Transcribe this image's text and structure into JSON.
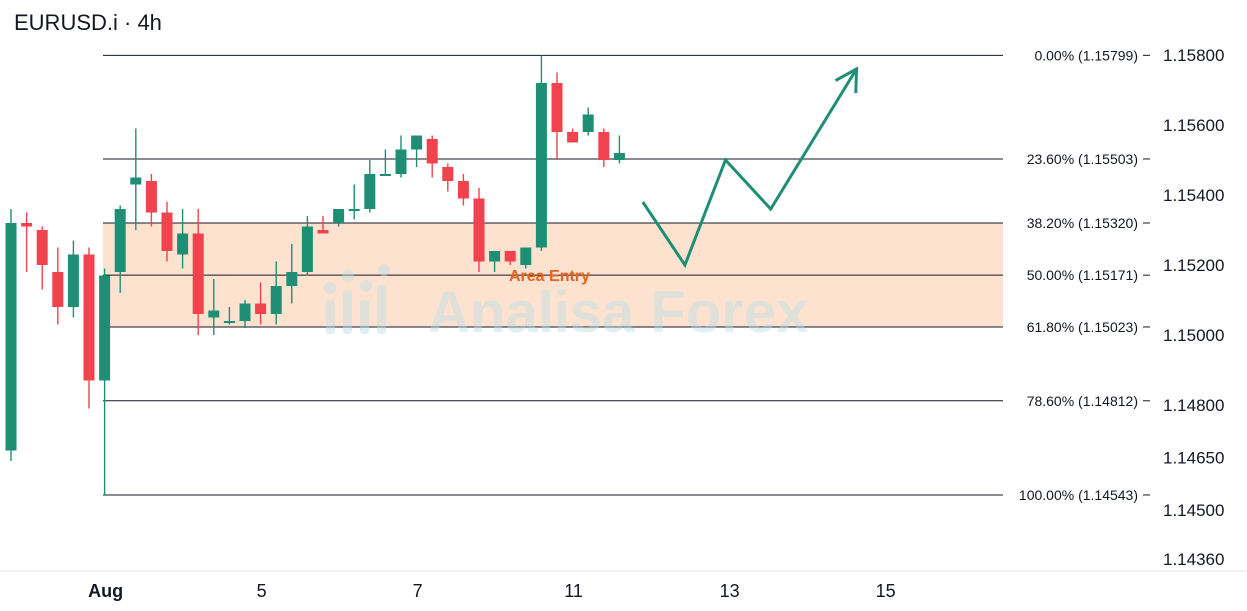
{
  "header": {
    "title": "EURUSD.i · 4h"
  },
  "watermark": {
    "text": "Analisa Forex",
    "icon": "bar-chart-logo-icon"
  },
  "colors": {
    "bull": "#1e8f74",
    "bear": "#f0434d",
    "zone": "#fde3cf",
    "projection": "#1e8f74"
  },
  "chart_data": {
    "type": "candlestick",
    "symbol": "EURUSD.i",
    "timeframe": "4h",
    "ylim": [
      1.1436,
      1.1589
    ],
    "y_ticks": [
      1.158,
      1.156,
      1.154,
      1.152,
      1.15,
      1.148,
      1.1465,
      1.145,
      1.1436
    ],
    "y_tick_labels": [
      "1.15800",
      "1.15600",
      "1.15400",
      "1.15200",
      "1.15000",
      "1.14800",
      "1.14650",
      "1.14500",
      "1.14360"
    ],
    "x_tick_labels": [
      {
        "label": "Aug",
        "index": 6
      },
      {
        "label": "5",
        "index": 16
      },
      {
        "label": "7",
        "index": 26
      },
      {
        "label": "11",
        "index": 36
      },
      {
        "label": "13",
        "index": 46
      },
      {
        "label": "15",
        "index": 56
      }
    ],
    "candles": [
      {
        "o": 1.1467,
        "h": 1.1536,
        "l": 1.1464,
        "c": 1.1532
      },
      {
        "o": 1.1532,
        "h": 1.1535,
        "l": 1.1518,
        "c": 1.1531
      },
      {
        "o": 1.153,
        "h": 1.1531,
        "l": 1.1513,
        "c": 1.152
      },
      {
        "o": 1.1518,
        "h": 1.1525,
        "l": 1.1503,
        "c": 1.1508
      },
      {
        "o": 1.1508,
        "h": 1.1527,
        "l": 1.1505,
        "c": 1.1523
      },
      {
        "o": 1.1523,
        "h": 1.1525,
        "l": 1.1479,
        "c": 1.1487
      },
      {
        "o": 1.1487,
        "h": 1.1519,
        "l": 1.14543,
        "c": 1.1517
      },
      {
        "o": 1.1518,
        "h": 1.1537,
        "l": 1.1512,
        "c": 1.1536
      },
      {
        "o": 1.1543,
        "h": 1.1559,
        "l": 1.153,
        "c": 1.1545
      },
      {
        "o": 1.1544,
        "h": 1.1546,
        "l": 1.1531,
        "c": 1.1535
      },
      {
        "o": 1.1535,
        "h": 1.1538,
        "l": 1.1521,
        "c": 1.1524
      },
      {
        "o": 1.1523,
        "h": 1.1536,
        "l": 1.1519,
        "c": 1.1529
      },
      {
        "o": 1.1529,
        "h": 1.1536,
        "l": 1.15,
        "c": 1.1506
      },
      {
        "o": 1.1505,
        "h": 1.1516,
        "l": 1.15,
        "c": 1.1507
      },
      {
        "o": 1.1504,
        "h": 1.1508,
        "l": 1.1503,
        "c": 1.1504
      },
      {
        "o": 1.1504,
        "h": 1.151,
        "l": 1.1502,
        "c": 1.1509
      },
      {
        "o": 1.1509,
        "h": 1.1515,
        "l": 1.1503,
        "c": 1.1506
      },
      {
        "o": 1.1506,
        "h": 1.1521,
        "l": 1.1503,
        "c": 1.1514
      },
      {
        "o": 1.1514,
        "h": 1.1526,
        "l": 1.1509,
        "c": 1.1518
      },
      {
        "o": 1.1518,
        "h": 1.1534,
        "l": 1.1517,
        "c": 1.1531
      },
      {
        "o": 1.153,
        "h": 1.1534,
        "l": 1.1529,
        "c": 1.1529
      },
      {
        "o": 1.1532,
        "h": 1.1536,
        "l": 1.1531,
        "c": 1.1536
      },
      {
        "o": 1.1536,
        "h": 1.1543,
        "l": 1.1533,
        "c": 1.1536
      },
      {
        "o": 1.1536,
        "h": 1.155,
        "l": 1.1535,
        "c": 1.1546
      },
      {
        "o": 1.1546,
        "h": 1.1553,
        "l": 1.1546,
        "c": 1.1546
      },
      {
        "o": 1.1546,
        "h": 1.1557,
        "l": 1.1545,
        "c": 1.1553
      },
      {
        "o": 1.1553,
        "h": 1.1557,
        "l": 1.1548,
        "c": 1.1557
      },
      {
        "o": 1.1556,
        "h": 1.1557,
        "l": 1.1545,
        "c": 1.1549
      },
      {
        "o": 1.1548,
        "h": 1.1549,
        "l": 1.1541,
        "c": 1.1544
      },
      {
        "o": 1.1544,
        "h": 1.1546,
        "l": 1.1537,
        "c": 1.1539
      },
      {
        "o": 1.1539,
        "h": 1.1542,
        "l": 1.1518,
        "c": 1.1521
      },
      {
        "o": 1.1521,
        "h": 1.1524,
        "l": 1.1518,
        "c": 1.1524
      },
      {
        "o": 1.1524,
        "h": 1.1524,
        "l": 1.152,
        "c": 1.1521
      },
      {
        "o": 1.152,
        "h": 1.1525,
        "l": 1.1519,
        "c": 1.1525
      },
      {
        "o": 1.1525,
        "h": 1.15799,
        "l": 1.1524,
        "c": 1.1572
      },
      {
        "o": 1.1572,
        "h": 1.1575,
        "l": 1.155,
        "c": 1.1558
      },
      {
        "o": 1.1558,
        "h": 1.1559,
        "l": 1.1555,
        "c": 1.1555
      },
      {
        "o": 1.1558,
        "h": 1.1565,
        "l": 1.1557,
        "c": 1.1563
      },
      {
        "o": 1.1558,
        "h": 1.1559,
        "l": 1.1548,
        "c": 1.155
      },
      {
        "o": 1.155,
        "h": 1.1557,
        "l": 1.1549,
        "c": 1.1552
      }
    ],
    "fibonacci": [
      {
        "level": "0.00%",
        "price": "1.15799"
      },
      {
        "level": "23.60%",
        "price": "1.15503"
      },
      {
        "level": "38.20%",
        "price": "1.15320"
      },
      {
        "level": "50.00%",
        "price": "1.15171"
      },
      {
        "level": "61.80%",
        "price": "1.15023"
      },
      {
        "level": "78.60%",
        "price": "1.14812"
      },
      {
        "level": "100.00%",
        "price": "1.14543"
      }
    ],
    "zone": {
      "label": "Area Entry",
      "from": 1.15023,
      "to": 1.1532
    },
    "projection": [
      {
        "i": 40.5,
        "p": 1.1538
      },
      {
        "i": 43.2,
        "p": 1.152
      },
      {
        "i": 45.8,
        "p": 1.155
      },
      {
        "i": 48.7,
        "p": 1.1536
      },
      {
        "i": 54.2,
        "p": 1.1576
      }
    ]
  }
}
